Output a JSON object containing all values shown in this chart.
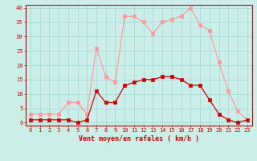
{
  "hours": [
    0,
    1,
    2,
    3,
    4,
    5,
    6,
    7,
    8,
    9,
    10,
    11,
    12,
    13,
    14,
    15,
    16,
    17,
    18,
    19,
    20,
    21,
    22,
    23
  ],
  "wind_avg": [
    1,
    1,
    1,
    1,
    1,
    0,
    1,
    11,
    7,
    7,
    13,
    14,
    15,
    15,
    16,
    16,
    15,
    13,
    13,
    8,
    3,
    1,
    0,
    1
  ],
  "wind_gust": [
    3,
    3,
    3,
    3,
    7,
    7,
    3,
    26,
    16,
    14,
    37,
    37,
    35,
    31,
    35,
    36,
    37,
    40,
    34,
    32,
    21,
    11,
    4,
    1
  ],
  "xlabel": "Vent moyen/en rafales ( km/h )",
  "ylim_min": -1,
  "ylim_max": 41,
  "yticks": [
    0,
    5,
    10,
    15,
    20,
    25,
    30,
    35,
    40
  ],
  "bg_color": "#cceee8",
  "grid_color": "#aadddd",
  "avg_color": "#cc0000",
  "gust_color": "#ff9999",
  "marker": "s",
  "markersize": 2.2,
  "linewidth": 0.9,
  "tick_fontsize": 5.0,
  "xlabel_fontsize": 6.0
}
